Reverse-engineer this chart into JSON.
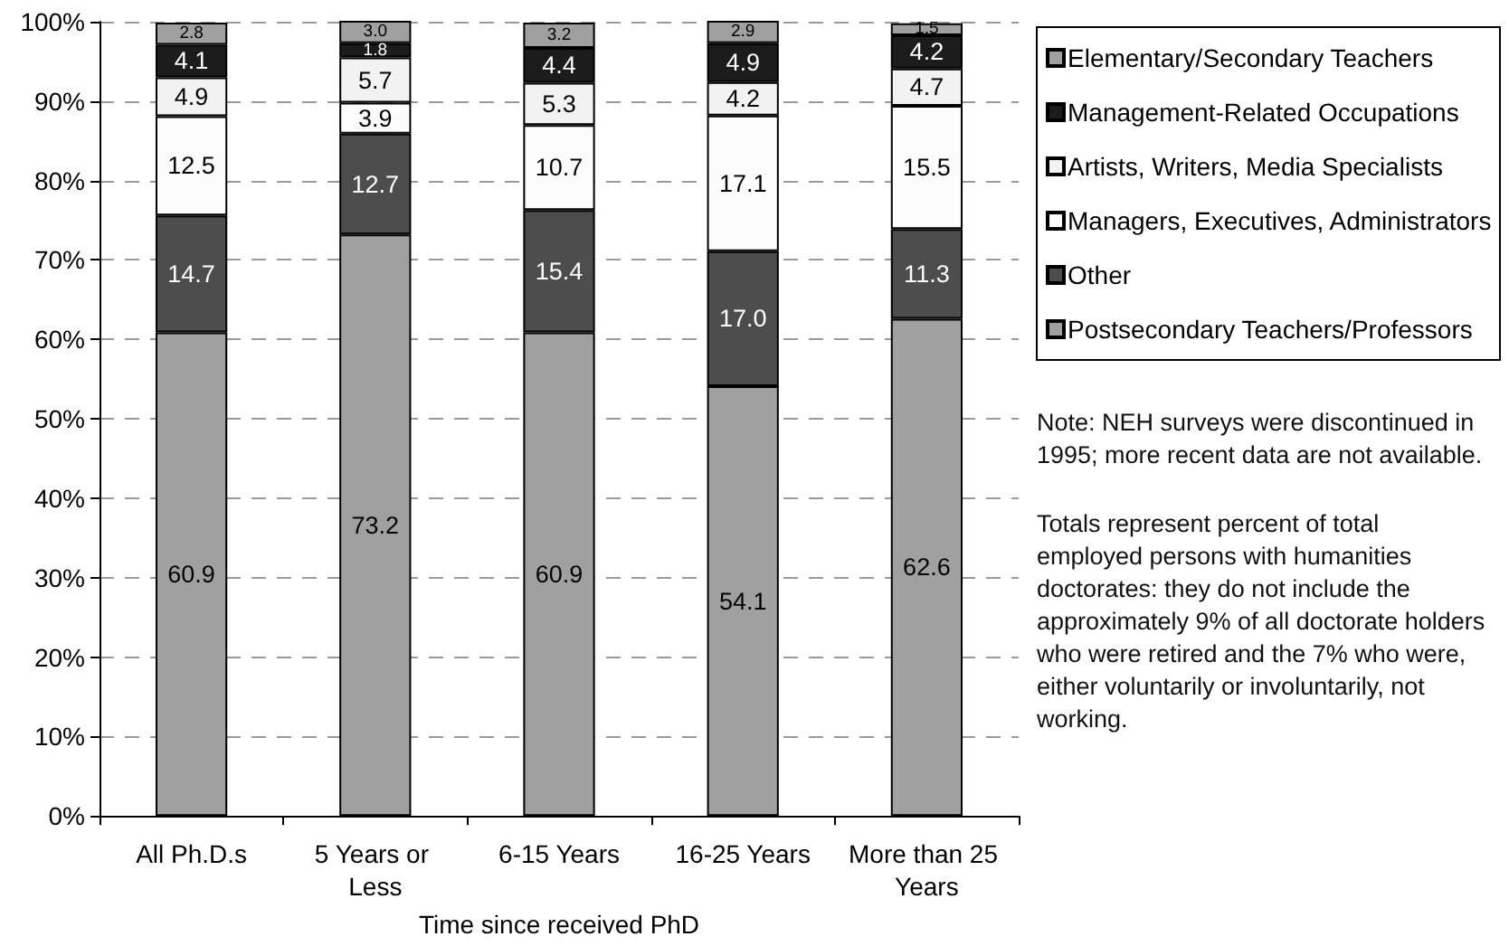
{
  "chart_data": {
    "type": "bar",
    "stacked": true,
    "xlabel": "Time since received PhD",
    "categories": [
      "All Ph.D.s",
      "5 Years or Less",
      "6-15 Years",
      "16-25 Years",
      "More than 25 Years"
    ],
    "series": [
      {
        "name": "Postsecondary Teachers/Professors",
        "color": "#a0a0a0",
        "values": [
          60.9,
          73.2,
          60.9,
          54.1,
          62.6
        ],
        "value_labels": [
          "60.9",
          "73.2",
          "60.9",
          "54.1",
          "62.6"
        ]
      },
      {
        "name": "Other",
        "color": "#4d4d4d",
        "values": [
          14.7,
          12.7,
          15.4,
          17.0,
          11.3
        ],
        "value_labels": [
          "14.7",
          "12.7",
          "15.4",
          "17.0",
          "11.3"
        ]
      },
      {
        "name": "Managers, Executives, Administrators",
        "color": "#fcfcfc",
        "values": [
          12.5,
          3.9,
          10.7,
          17.1,
          15.5
        ],
        "value_labels": [
          "12.5",
          "3.9",
          "10.7",
          "17.1",
          "15.5"
        ]
      },
      {
        "name": "Artists, Writers, Media Specialists",
        "color": "#f2f2f2",
        "values": [
          4.9,
          5.7,
          5.3,
          4.2,
          4.7
        ],
        "value_labels": [
          "4.9",
          "5.7",
          "5.3",
          "4.2",
          "4.7"
        ]
      },
      {
        "name": "Management-Related Occupations",
        "color": "#1c1c1c",
        "values": [
          4.1,
          1.8,
          4.4,
          4.9,
          4.2
        ],
        "value_labels": [
          "4.1",
          "1.8",
          "4.4",
          "4.9",
          "4.2"
        ]
      },
      {
        "name": "Elementary/Secondary Teachers",
        "color": "#a0a0a0",
        "values": [
          2.8,
          3.0,
          3.2,
          2.9,
          1.5
        ],
        "value_labels": [
          "2.8",
          "3.0",
          "3.2",
          "2.9",
          "1.5"
        ]
      }
    ],
    "ylim": [
      0,
      100
    ],
    "yticks": [
      {
        "value": 0,
        "label": "0%"
      },
      {
        "value": 10,
        "label": "10%"
      },
      {
        "value": 20,
        "label": "20%"
      },
      {
        "value": 30,
        "label": "30%"
      },
      {
        "value": 40,
        "label": "40%"
      },
      {
        "value": 50,
        "label": "50%"
      },
      {
        "value": 60,
        "label": "60%"
      },
      {
        "value": 70,
        "label": "70%"
      },
      {
        "value": 80,
        "label": "80%"
      },
      {
        "value": 90,
        "label": "90%"
      },
      {
        "value": 100,
        "label": "100%"
      }
    ],
    "grid": "y",
    "legend": "right",
    "annotations": [
      "Note: NEH surveys were discontinued in 1995; more recent data are not available.",
      "Totals represent percent of total employed persons with humanities doctorates: they do not include the approximately 9% of all doctorate holders who were retired and the 7% who were, either voluntarily or involuntarily, not working."
    ]
  }
}
